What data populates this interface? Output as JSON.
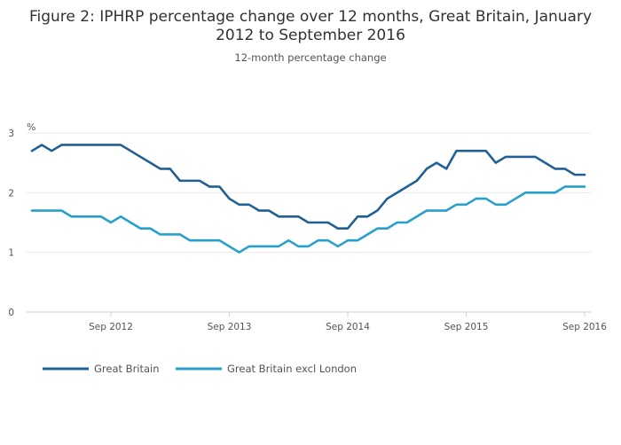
{
  "chart_data": {
    "type": "line",
    "title_line1": "Figure 2: IPHRP percentage change over 12 months, Great Britain, January",
    "title_line2": "2012 to September 2016",
    "subtitle": "12-month percentage change",
    "ylabel": "%",
    "xlabel": "",
    "ylim": [
      0,
      3
    ],
    "y_ticks": [
      0,
      1,
      2,
      3
    ],
    "grid": true,
    "legend_position": "bottom-left",
    "x_start": "2012-01",
    "x_end": "2016-09",
    "x_ticks": [
      {
        "label": "Sep 2012",
        "month": "2012-09"
      },
      {
        "label": "Sep 2013",
        "month": "2013-09"
      },
      {
        "label": "Sep 2014",
        "month": "2014-09"
      },
      {
        "label": "Sep 2015",
        "month": "2015-09"
      },
      {
        "label": "Sep 2016",
        "month": "2016-09"
      }
    ],
    "series": [
      {
        "name": "Great Britain",
        "color": "#206095",
        "values": [
          2.7,
          2.8,
          2.7,
          2.8,
          2.8,
          2.8,
          2.8,
          2.8,
          2.8,
          2.8,
          2.7,
          2.6,
          2.5,
          2.4,
          2.4,
          2.2,
          2.2,
          2.2,
          2.1,
          2.1,
          1.9,
          1.8,
          1.8,
          1.7,
          1.7,
          1.6,
          1.6,
          1.6,
          1.5,
          1.5,
          1.5,
          1.4,
          1.4,
          1.6,
          1.6,
          1.7,
          1.9,
          2.0,
          2.1,
          2.2,
          2.4,
          2.5,
          2.4,
          2.7,
          2.7,
          2.7,
          2.7,
          2.5,
          2.6,
          2.6,
          2.6,
          2.6,
          2.5,
          2.4,
          2.4,
          2.3,
          2.3
        ]
      },
      {
        "name": "Great Britain excl London",
        "color": "#27a0cc",
        "values": [
          1.7,
          1.7,
          1.7,
          1.7,
          1.6,
          1.6,
          1.6,
          1.6,
          1.5,
          1.6,
          1.5,
          1.4,
          1.4,
          1.3,
          1.3,
          1.3,
          1.2,
          1.2,
          1.2,
          1.2,
          1.1,
          1.0,
          1.1,
          1.1,
          1.1,
          1.1,
          1.2,
          1.1,
          1.1,
          1.2,
          1.2,
          1.1,
          1.2,
          1.2,
          1.3,
          1.4,
          1.4,
          1.5,
          1.5,
          1.6,
          1.7,
          1.7,
          1.7,
          1.8,
          1.8,
          1.9,
          1.9,
          1.8,
          1.8,
          1.9,
          2.0,
          2.0,
          2.0,
          2.0,
          2.1,
          2.1,
          2.1
        ]
      }
    ]
  }
}
